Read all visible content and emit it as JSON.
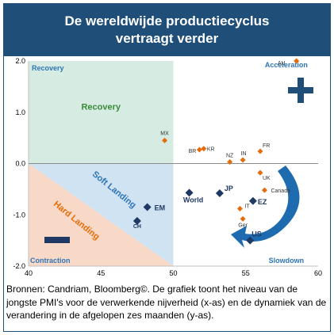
{
  "title": {
    "line1": "De wereldwijde productiecyclus",
    "line2": "vertraagt verder"
  },
  "caption": "Bronnen: Candriam, Bloomberg©. De grafiek toont het niveau van de jongste PMI's voor de verwerkende nijverheid (x-as) en de dynamiek van de verandering in de afgelopen zes maanden (y-as).",
  "colors": {
    "header": "#1f4e79",
    "recovery": "#d6ece2",
    "soft_landing": "#cfe3f3",
    "hard_landing": "#f8d8c6",
    "orange_marker": "#e46c0a",
    "navy_marker": "#1f3864",
    "arrow": "#1f6bb0"
  },
  "quadrants": {
    "recovery_corner": "Recovery",
    "recovery_center": "Recovery",
    "soft_landing": "Soft Landing",
    "hard_landing": "Hard Landing",
    "contraction": "Contraction",
    "acceleration": "Acceleration",
    "slowdown": "Slowdown"
  },
  "symbols": {
    "plus": "+",
    "minus": "−"
  },
  "chart_data": {
    "type": "scatter",
    "xlim": [
      40,
      60
    ],
    "ylim": [
      -2.0,
      2.0
    ],
    "x_ticks": [
      40,
      45,
      50,
      55,
      60
    ],
    "y_ticks": [
      2.0,
      1.0,
      0.0,
      -1.0,
      -2.0
    ],
    "x_tick_labels": [
      "40",
      "45",
      "50",
      "55",
      "60"
    ],
    "y_tick_labels": [
      "2.0",
      "1.0",
      "0.0",
      "-1.0",
      "-2.0"
    ],
    "grid": false,
    "series": [
      {
        "points": [
          {
            "label": "AU",
            "x": 58.5,
            "y": 2.0
          },
          {
            "label": "MX",
            "x": 49.4,
            "y": 0.45
          },
          {
            "label": "BR",
            "x": 51.8,
            "y": 0.27
          },
          {
            "label": "KR",
            "x": 52.1,
            "y": 0.29
          },
          {
            "label": "NZ",
            "x": 53.9,
            "y": 0.03
          },
          {
            "label": "IN",
            "x": 54.8,
            "y": 0.07
          },
          {
            "label": "FR",
            "x": 56.0,
            "y": 0.24
          },
          {
            "label": "UK",
            "x": 56.0,
            "y": -0.18
          },
          {
            "label": "Canada",
            "x": 56.3,
            "y": -0.52
          },
          {
            "label": "IT",
            "x": 54.6,
            "y": -0.88
          },
          {
            "label": "Ger",
            "x": 54.8,
            "y": -1.08
          }
        ]
      },
      {
        "points": [
          {
            "label": "World",
            "x": 51.1,
            "y": -0.57
          },
          {
            "label": "JP",
            "x": 53.2,
            "y": -0.58
          },
          {
            "label": "EM",
            "x": 48.2,
            "y": -0.85
          },
          {
            "label": "CH",
            "x": 47.5,
            "y": -1.12
          },
          {
            "label": "EZ",
            "x": 55.5,
            "y": -0.73
          },
          {
            "label": "US",
            "x": 55.3,
            "y": -1.5
          }
        ]
      }
    ]
  }
}
